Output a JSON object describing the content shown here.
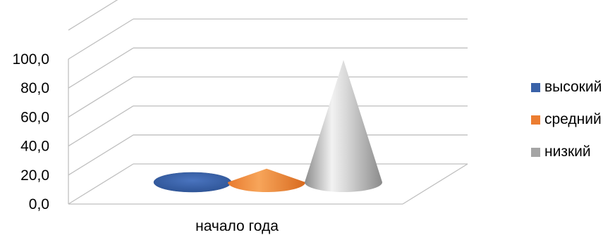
{
  "chart_data": {
    "type": "bar",
    "subtype": "3d-cone",
    "categories": [
      "начало года"
    ],
    "series": [
      {
        "name": "высокий",
        "values": [
          0.0
        ],
        "color": "#3A62A8"
      },
      {
        "name": "средний",
        "values": [
          10.0
        ],
        "color": "#EC7D31"
      },
      {
        "name": "низкий",
        "values": [
          90.0
        ],
        "color": "#A5A5A5"
      }
    ],
    "ylim": [
      0,
      120
    ],
    "yticks": [
      "0,0",
      "20,0",
      "40,0",
      "60,0",
      "80,0",
      "100,0"
    ],
    "grid": true,
    "legend_position": "right"
  }
}
